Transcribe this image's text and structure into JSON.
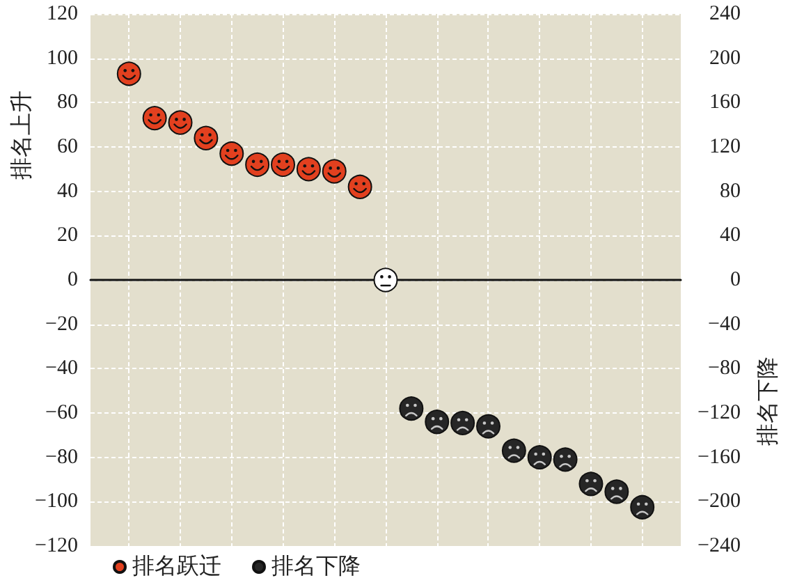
{
  "chart_data": {
    "type": "scatter",
    "ylabel": "排名上升",
    "y2label": "排名下降",
    "categories": [
      null,
      null,
      null,
      null,
      null,
      null,
      null,
      null,
      null,
      null,
      null,
      null,
      null,
      null,
      null,
      null,
      null,
      null,
      null,
      null,
      null,
      null,
      null
    ],
    "series": [
      {
        "name": "排名跃迁",
        "color": "#e2401f",
        "values": [
          null,
          93,
          73,
          71,
          64,
          57,
          52,
          52,
          50,
          49,
          42,
          null,
          null,
          null,
          null,
          null,
          null,
          null,
          null,
          null,
          null,
          null,
          null
        ]
      },
      {
        "color": "#ffffff",
        "values": [
          null,
          null,
          null,
          null,
          null,
          null,
          null,
          null,
          null,
          null,
          null,
          0,
          null,
          null,
          null,
          null,
          null,
          null,
          null,
          null,
          null,
          null,
          null
        ]
      },
      {
        "name": "排名下降",
        "color": "#262626",
        "axis": "y2",
        "values": [
          null,
          null,
          null,
          null,
          null,
          null,
          null,
          null,
          null,
          null,
          null,
          null,
          -116,
          -128,
          -129,
          -132,
          -154,
          -160,
          -162,
          -184,
          -191,
          -205,
          null
        ]
      }
    ],
    "ylim": [
      -120,
      120
    ],
    "yticks": [
      {
        "value": -120,
        "label": "−120"
      },
      {
        "value": -100,
        "label": "−100"
      },
      {
        "value": -80,
        "label": "−80"
      },
      {
        "value": -60,
        "label": "−60"
      },
      {
        "value": -40,
        "label": "−40"
      },
      {
        "value": -20,
        "label": "−20"
      },
      0,
      20,
      40,
      60,
      80,
      100,
      120
    ],
    "y2lim": [
      -240,
      240
    ],
    "y2ticks": [
      {
        "value": -240,
        "label": "−240"
      },
      {
        "value": -200,
        "label": "−200"
      },
      {
        "value": -160,
        "label": "−160"
      },
      {
        "value": -120,
        "label": "−120"
      },
      {
        "value": -80,
        "label": "−80"
      },
      {
        "value": -40,
        "label": "−40"
      },
      0,
      40,
      80,
      120,
      160,
      200,
      240
    ],
    "grid": true,
    "legend": "bottom left"
  }
}
